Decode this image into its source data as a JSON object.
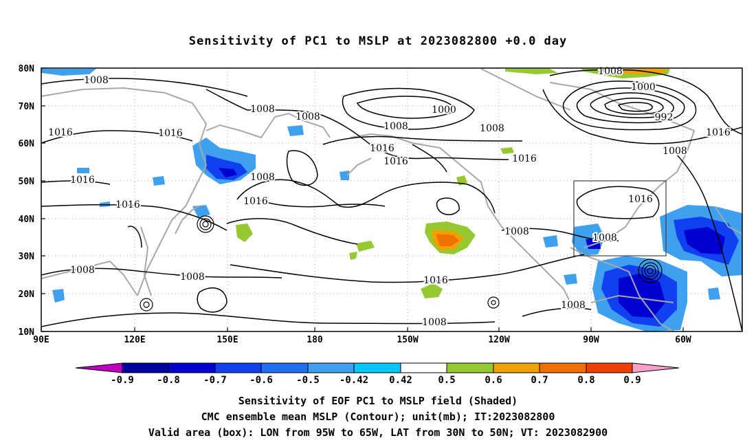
{
  "title": "Sensitivity of PC1 to MSLP at 2023082800 +0.0 day",
  "lat_labels": [
    "80N",
    "70N",
    "60N",
    "50N",
    "40N",
    "30N",
    "20N",
    "10N"
  ],
  "lon_labels": [
    "90E",
    "120E",
    "150E",
    "180",
    "150W",
    "120W",
    "90W",
    "60W"
  ],
  "contour_labels": [
    "1008",
    "1008",
    "1016",
    "1016",
    "1016",
    "1016",
    "1008",
    "1008",
    "1000",
    "1008",
    "1016",
    "1016",
    "1016",
    "1008",
    "1016",
    "1008",
    "1008",
    "1016",
    "1008",
    "1008",
    "1000",
    "992",
    "1016",
    "1008",
    "1016",
    "1008",
    "1008",
    "1008"
  ],
  "colorbar": {
    "labels": [
      "-0.9",
      "-0.8",
      "-0.7",
      "-0.6",
      "-0.5",
      "-0.42",
      "0.42",
      "0.5",
      "0.6",
      "0.7",
      "0.8",
      "0.9"
    ],
    "colors": [
      "#c000c0",
      "#0000a0",
      "#0000d0",
      "#1040f0",
      "#2070f0",
      "#40a0f0",
      "#00c8f8",
      "#ffffff",
      "#96c832",
      "#f0a000",
      "#f07000",
      "#f04000",
      "#ff0000",
      "#f8a0c8"
    ]
  },
  "caption_line1": "Sensitivity of EOF PC1 to MSLP field (Shaded)",
  "caption_line2": "CMC ensemble mean MSLP (Contour); unit(mb); IT:2023082800",
  "caption_line3": "Valid area (box): LON from 95W to 65W, LAT from 30N to 50N; VT: 2023082900"
}
